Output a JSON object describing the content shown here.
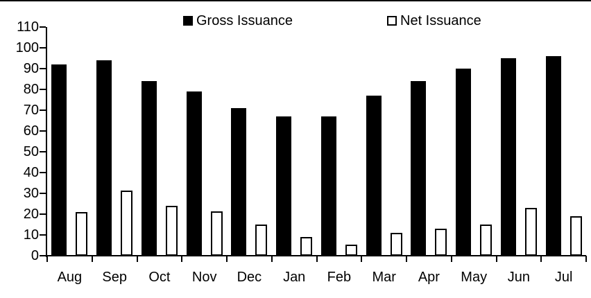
{
  "chart_data": {
    "type": "bar",
    "title": "",
    "categories": [
      "Aug",
      "Sep",
      "Oct",
      "Nov",
      "Dec",
      "Jan",
      "Feb",
      "Mar",
      "Apr",
      "May",
      "Jun",
      "Jul"
    ],
    "series": [
      {
        "name": "Gross Issuance",
        "fill": "#000000",
        "values": [
          92,
          94,
          84,
          79,
          71,
          67,
          67,
          77,
          84,
          90,
          95,
          96
        ]
      },
      {
        "name": "Net Issuance",
        "fill": "#ffffff",
        "border": "#000000",
        "values": [
          21,
          31.5,
          24,
          21.5,
          15,
          9,
          5.5,
          11,
          13,
          15,
          23,
          19
        ]
      }
    ],
    "xlabel": "",
    "ylabel": "",
    "ylim": [
      0,
      110
    ],
    "y_ticks": [
      0,
      10,
      20,
      30,
      40,
      50,
      60,
      70,
      80,
      90,
      100,
      110
    ],
    "grid": false,
    "legend_position": "top",
    "axis_color": "#000000",
    "background_color": "#ffffff"
  }
}
